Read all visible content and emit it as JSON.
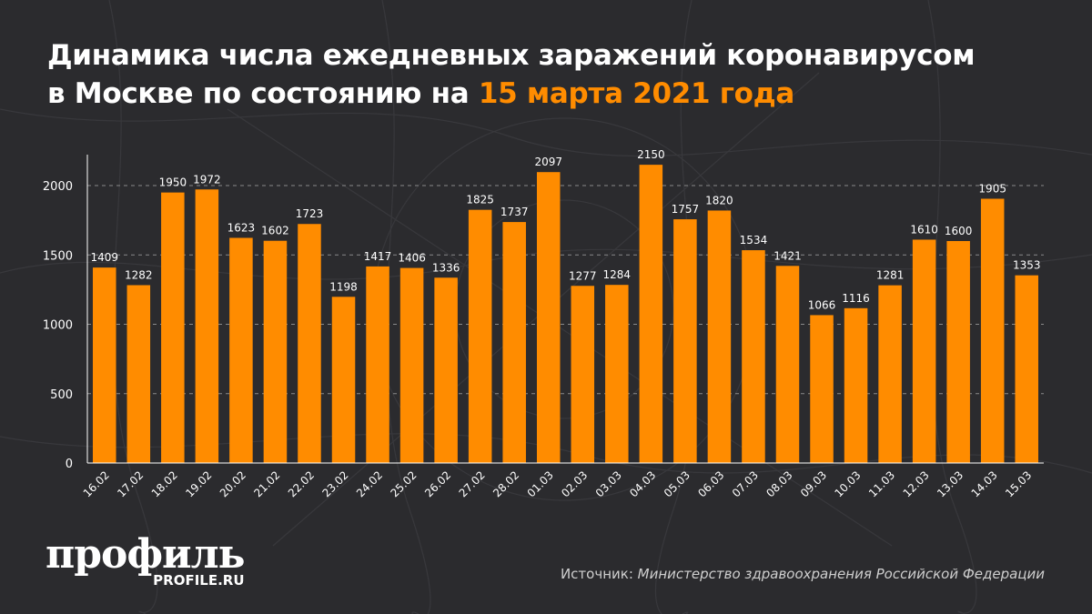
{
  "title": {
    "line1": "Динамика числа ежедневных заражений коронавирусом",
    "line2_prefix": "в Москве по состоянию на ",
    "line2_accent": "15 марта 2021 года"
  },
  "logo": {
    "main": "профиль",
    "sub": "PROFILE.RU"
  },
  "source": {
    "label": "Источник: ",
    "name": "Министерство здравоохранения Российской Федерации"
  },
  "colors": {
    "background": "#2b2b2e",
    "bar": "#ff8c00",
    "accent": "#ff8c00",
    "text": "#ffffff"
  },
  "chart_data": {
    "type": "bar",
    "title": "Динамика числа ежедневных заражений коронавирусом в Москве по состоянию на 15 марта 2021 года",
    "xlabel": "",
    "ylabel": "",
    "ylim": [
      0,
      2250
    ],
    "yticks": [
      0,
      500,
      1000,
      1500,
      2000
    ],
    "grid": true,
    "categories": [
      "16.02",
      "17.02",
      "18.02",
      "19.02",
      "20.02",
      "21.02",
      "22.02",
      "23.02",
      "24.02",
      "25.02",
      "26.02",
      "27.02",
      "28.02",
      "01.03",
      "02.03",
      "03.03",
      "04.03",
      "05.03",
      "06.03",
      "07.03",
      "08.03",
      "09.03",
      "10.03",
      "11.03",
      "12.03",
      "13.03",
      "14.03",
      "15.03"
    ],
    "values": [
      1409,
      1282,
      1950,
      1972,
      1623,
      1602,
      1723,
      1198,
      1417,
      1406,
      1336,
      1825,
      1737,
      2097,
      1277,
      1284,
      2150,
      1757,
      1820,
      1534,
      1421,
      1066,
      1116,
      1281,
      1610,
      1600,
      1905,
      1353
    ]
  }
}
